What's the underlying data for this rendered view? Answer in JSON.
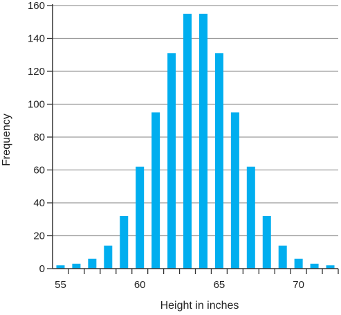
{
  "chart_data": {
    "type": "bar",
    "xlabel": "Height in inches",
    "ylabel": "Frequency",
    "x": [
      55,
      56,
      57,
      58,
      59,
      60,
      61,
      62,
      63,
      64,
      65,
      66,
      67,
      68,
      69,
      70,
      71,
      72
    ],
    "series": [
      {
        "values": [
          2,
          3,
          6,
          14,
          32,
          62,
          95,
          131,
          155,
          155,
          131,
          95,
          62,
          32,
          14,
          6,
          3,
          2
        ]
      }
    ],
    "xlim": [
      54.5,
      72.5
    ],
    "ylim": [
      0,
      160
    ],
    "x_tick_labels": [
      "55",
      "60",
      "65",
      "70"
    ],
    "y_tick_labels": [
      "0",
      "20",
      "40",
      "60",
      "80",
      "100",
      "120",
      "140",
      "160"
    ],
    "grid": true,
    "colors": {
      "bar": "#00aeef",
      "grid": "#9a9a9a",
      "axis": "#333333"
    }
  }
}
